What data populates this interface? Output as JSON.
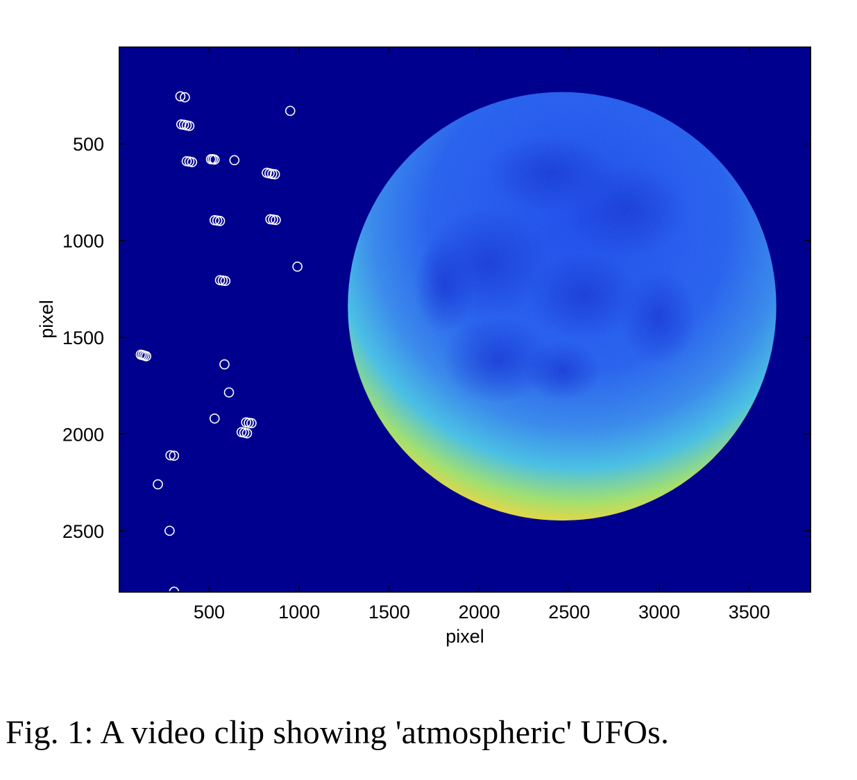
{
  "caption": "Fig. 1: A video clip showing 'atmospheric' UFOs.",
  "chart_data": {
    "type": "scatter",
    "title": "",
    "xlabel": "pixel",
    "ylabel": "pixel",
    "xlim": [
      1,
      3840
    ],
    "ylim": [
      1,
      2816
    ],
    "y_reversed": true,
    "grid": false,
    "legend": "none",
    "xticks": [
      500,
      1000,
      1500,
      2000,
      2500,
      3000,
      3500
    ],
    "yticks": [
      500,
      1000,
      1500,
      2000,
      2500
    ],
    "background_image": "false-color (jet) full moon on dark blue field",
    "colors": {
      "field": "#00008f",
      "moon_center": "#1b4ff0",
      "moon_limb_warm": "#f0d232",
      "moon_limb_hot": "#d8501c",
      "marker": "#ffffff"
    },
    "moon": {
      "center": [
        2460,
        1340
      ],
      "radius": 1190
    },
    "points": [
      [
        340,
        255
      ],
      [
        365,
        260
      ],
      [
        950,
        330
      ],
      [
        345,
        400
      ],
      [
        360,
        402
      ],
      [
        375,
        405
      ],
      [
        390,
        408
      ],
      [
        375,
        590
      ],
      [
        390,
        592
      ],
      [
        405,
        595
      ],
      [
        510,
        580
      ],
      [
        520,
        580
      ],
      [
        530,
        582
      ],
      [
        640,
        585
      ],
      [
        820,
        650
      ],
      [
        835,
        653
      ],
      [
        850,
        656
      ],
      [
        865,
        658
      ],
      [
        530,
        895
      ],
      [
        545,
        897
      ],
      [
        560,
        899
      ],
      [
        840,
        890
      ],
      [
        855,
        892
      ],
      [
        870,
        894
      ],
      [
        990,
        1135
      ],
      [
        560,
        1205
      ],
      [
        575,
        1207
      ],
      [
        590,
        1209
      ],
      [
        120,
        1590
      ],
      [
        130,
        1592
      ],
      [
        140,
        1595
      ],
      [
        150,
        1598
      ],
      [
        585,
        1640
      ],
      [
        610,
        1785
      ],
      [
        530,
        1920
      ],
      [
        705,
        1940
      ],
      [
        720,
        1942
      ],
      [
        735,
        1944
      ],
      [
        680,
        1990
      ],
      [
        695,
        1993
      ],
      [
        710,
        1996
      ],
      [
        285,
        2110
      ],
      [
        305,
        2112
      ],
      [
        215,
        2260
      ],
      [
        280,
        2500
      ],
      [
        305,
        2815
      ]
    ]
  }
}
